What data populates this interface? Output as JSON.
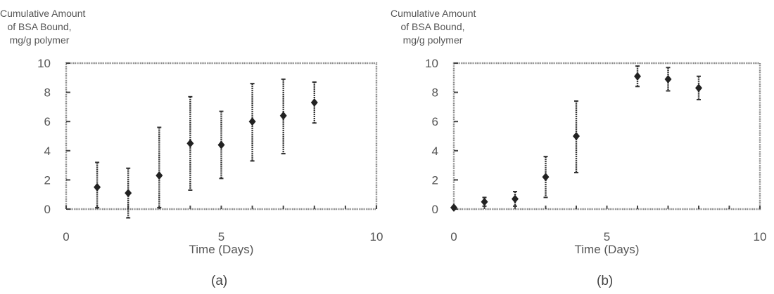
{
  "chart_data": [
    {
      "type": "scatter",
      "panel_label": "(a)",
      "title": "",
      "ylabel": [
        "Cumulative Amount",
        "of BSA Bound,",
        "mg/g polymer"
      ],
      "xlabel": "Time (Days)",
      "xlim": [
        0,
        10
      ],
      "ylim": [
        0,
        10
      ],
      "xticks": [
        "0",
        "5",
        "10"
      ],
      "yticks": [
        "0",
        "2",
        "4",
        "6",
        "8",
        "10"
      ],
      "error_bars": true,
      "series": [
        {
          "x": [
            1,
            2,
            3,
            4,
            5,
            6,
            7,
            8
          ],
          "y": [
            1.5,
            1.1,
            2.3,
            4.5,
            4.4,
            6.0,
            6.4,
            7.3
          ],
          "err_low": [
            1.4,
            1.7,
            2.2,
            3.2,
            2.3,
            2.7,
            2.6,
            1.4
          ],
          "err_high": [
            1.7,
            1.7,
            3.3,
            3.2,
            2.3,
            2.6,
            2.5,
            1.4
          ]
        }
      ]
    },
    {
      "type": "scatter",
      "panel_label": "(b)",
      "title": "",
      "ylabel": [
        "Cumulative Amount",
        "of BSA Bound,",
        "mg/g polymer"
      ],
      "xlabel": "Time (Days)",
      "xlim": [
        0,
        10
      ],
      "ylim": [
        0,
        10
      ],
      "xticks": [
        "0",
        "5",
        "10"
      ],
      "yticks": [
        "0",
        "2",
        "4",
        "6",
        "8",
        "10"
      ],
      "error_bars": true,
      "series": [
        {
          "x": [
            0,
            1,
            2,
            3,
            4,
            6,
            7,
            8
          ],
          "y": [
            0.1,
            0.5,
            0.7,
            2.2,
            5.0,
            9.1,
            8.9,
            8.3
          ],
          "err_low": [
            0.1,
            0.3,
            0.5,
            1.4,
            2.5,
            0.7,
            0.8,
            0.8
          ],
          "err_high": [
            0.1,
            0.3,
            0.5,
            1.4,
            2.4,
            0.7,
            0.8,
            0.8
          ]
        }
      ]
    }
  ]
}
